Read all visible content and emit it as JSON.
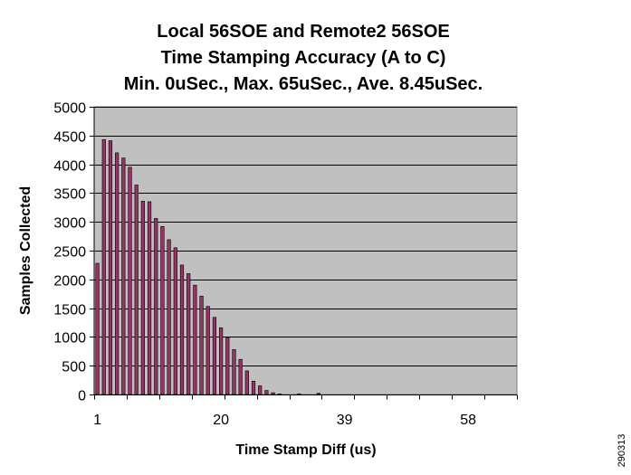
{
  "chart_data": {
    "type": "bar",
    "title_lines": [
      "Local 56SOE and Remote2 56SOE",
      "Time Stamping Accuracy (A to C)",
      "Min. 0uSec.,  Max. 65uSec., Ave. 8.45uSec."
    ],
    "xlabel": "Time Stamp Diff (us)",
    "ylabel": "Samples Collected",
    "x_tick_labels": [
      "1",
      "20",
      "39",
      "58"
    ],
    "x_tick_label_positions": [
      1,
      20,
      39,
      58
    ],
    "x": [
      1,
      2,
      3,
      4,
      5,
      6,
      7,
      8,
      9,
      10,
      11,
      12,
      13,
      14,
      15,
      16,
      17,
      18,
      19,
      20,
      21,
      22,
      23,
      24,
      25,
      26,
      27,
      28,
      29,
      30,
      31,
      32,
      33,
      34,
      35,
      36,
      37,
      38,
      39,
      40,
      41,
      42,
      43,
      44,
      45,
      46,
      47,
      48,
      49,
      50,
      51,
      52,
      53,
      54,
      55,
      56,
      57,
      58,
      59,
      60,
      61,
      62,
      63,
      64,
      65
    ],
    "values": [
      2280,
      4430,
      4410,
      4200,
      4110,
      3950,
      3640,
      3360,
      3350,
      3060,
      2920,
      2690,
      2550,
      2250,
      2100,
      1900,
      1710,
      1530,
      1340,
      1160,
      990,
      780,
      610,
      410,
      230,
      150,
      70,
      30,
      10,
      0,
      0,
      10,
      0,
      0,
      20,
      0,
      0,
      0,
      0,
      0,
      0,
      0,
      0,
      0,
      0,
      0,
      0,
      0,
      0,
      0,
      0,
      0,
      0,
      0,
      0,
      0,
      0,
      0,
      0,
      0,
      0,
      0,
      0,
      0,
      0
    ],
    "ylim": [
      0,
      5000
    ],
    "y_ticks": [
      0,
      500,
      1000,
      1500,
      2000,
      2500,
      3000,
      3500,
      4000,
      4500,
      5000
    ],
    "xlim": [
      0.5,
      65.5
    ],
    "grid": "horizontal",
    "plot_background": "#c0c0c0",
    "bar_color": "#993366",
    "bar_edge_color": "#000000"
  },
  "figure_id": "290313"
}
